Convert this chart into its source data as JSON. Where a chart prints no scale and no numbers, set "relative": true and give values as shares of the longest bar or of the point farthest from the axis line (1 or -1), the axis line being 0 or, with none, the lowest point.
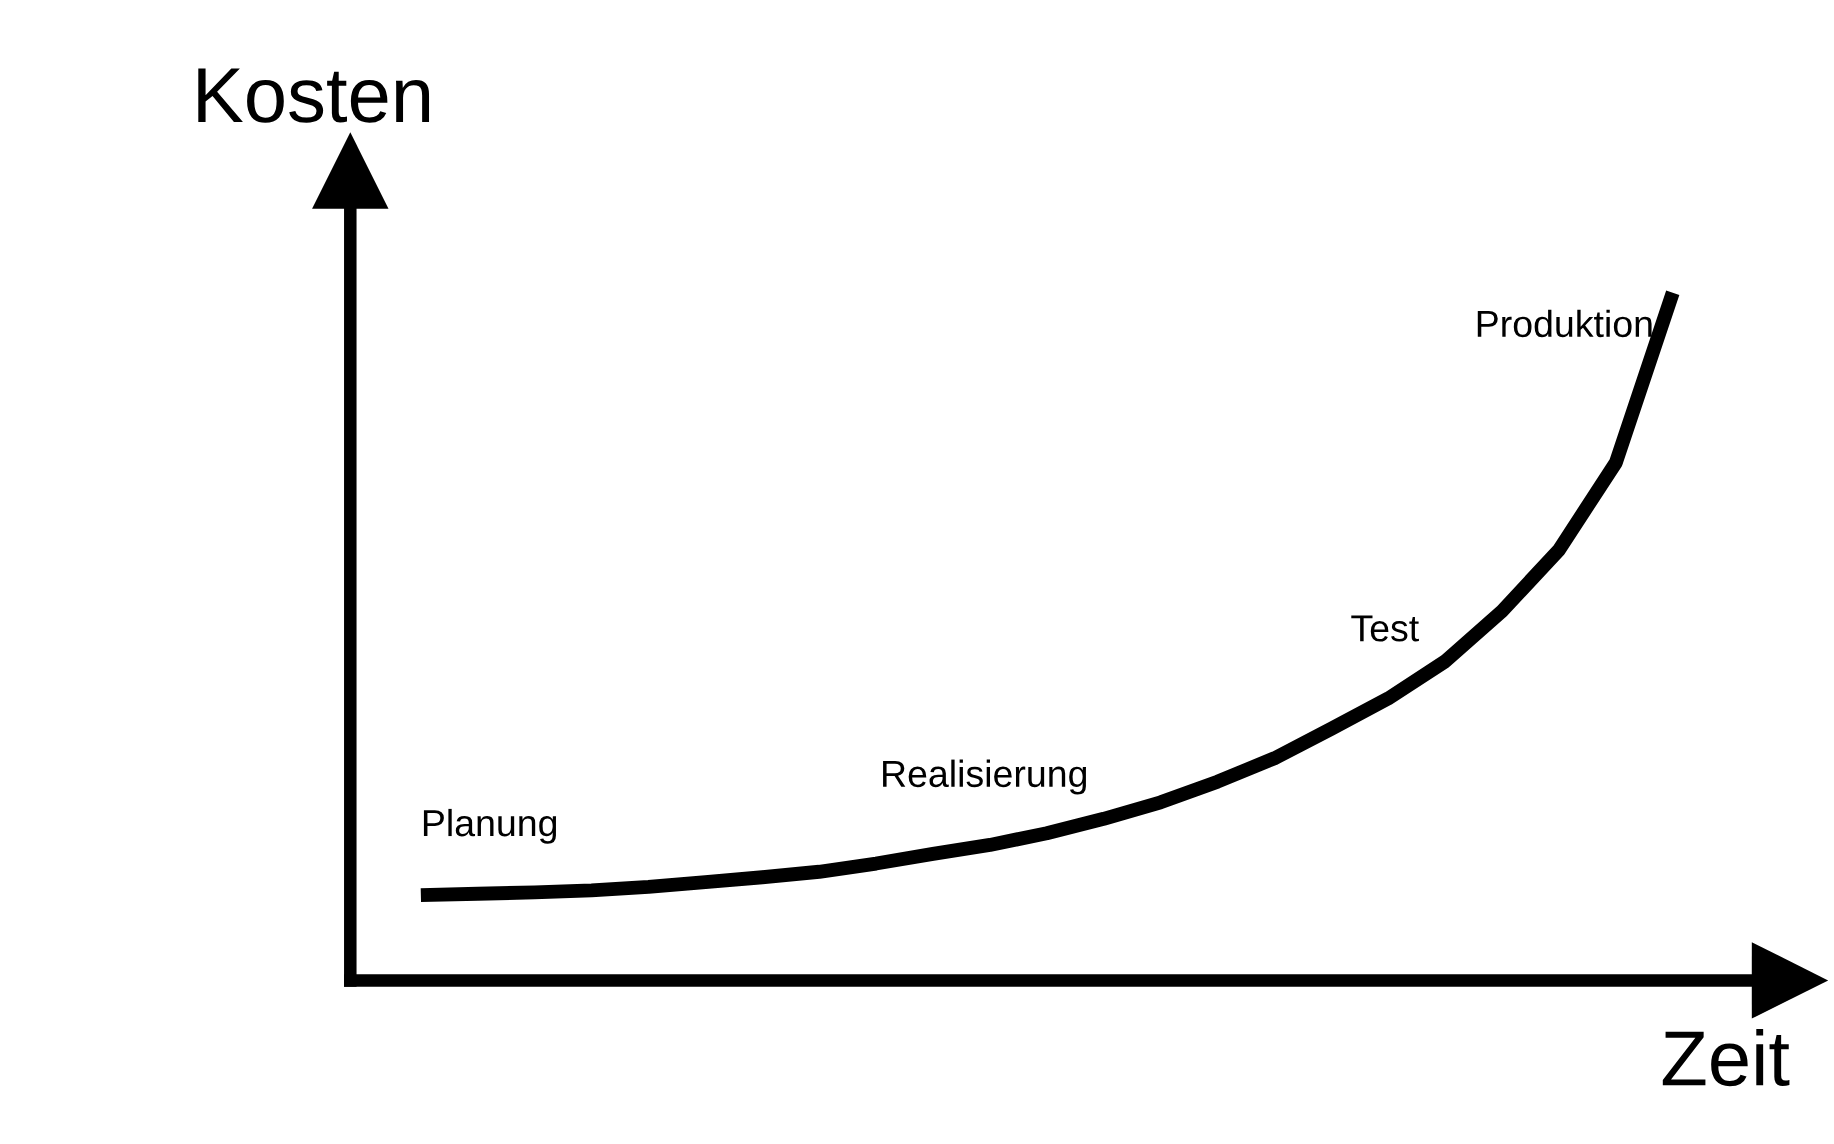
{
  "chart_data": {
    "type": "line",
    "relative": true,
    "xlabel": "Zeit",
    "ylabel": "Kosten",
    "categories": [
      null,
      null,
      null,
      null,
      null,
      null,
      null,
      null,
      null,
      null,
      null,
      null,
      null,
      null,
      null,
      null,
      null,
      null,
      null,
      null,
      null,
      null,
      null
    ],
    "series": [
      {
        "color": "#000000",
        "values": [
          0.124,
          0.126,
          0.128,
          0.131,
          0.136,
          0.143,
          0.15,
          0.158,
          0.17,
          0.184,
          0.197,
          0.214,
          0.235,
          0.259,
          0.289,
          0.323,
          0.366,
          0.41,
          0.464,
          0.537,
          0.626,
          0.753,
          1.0
        ]
      }
    ],
    "annotations": [
      "Planung",
      "Realisierung",
      "Test",
      "Produktion"
    ],
    "grid": false,
    "legend": false,
    "marker": "none",
    "line_style": "solid"
  }
}
